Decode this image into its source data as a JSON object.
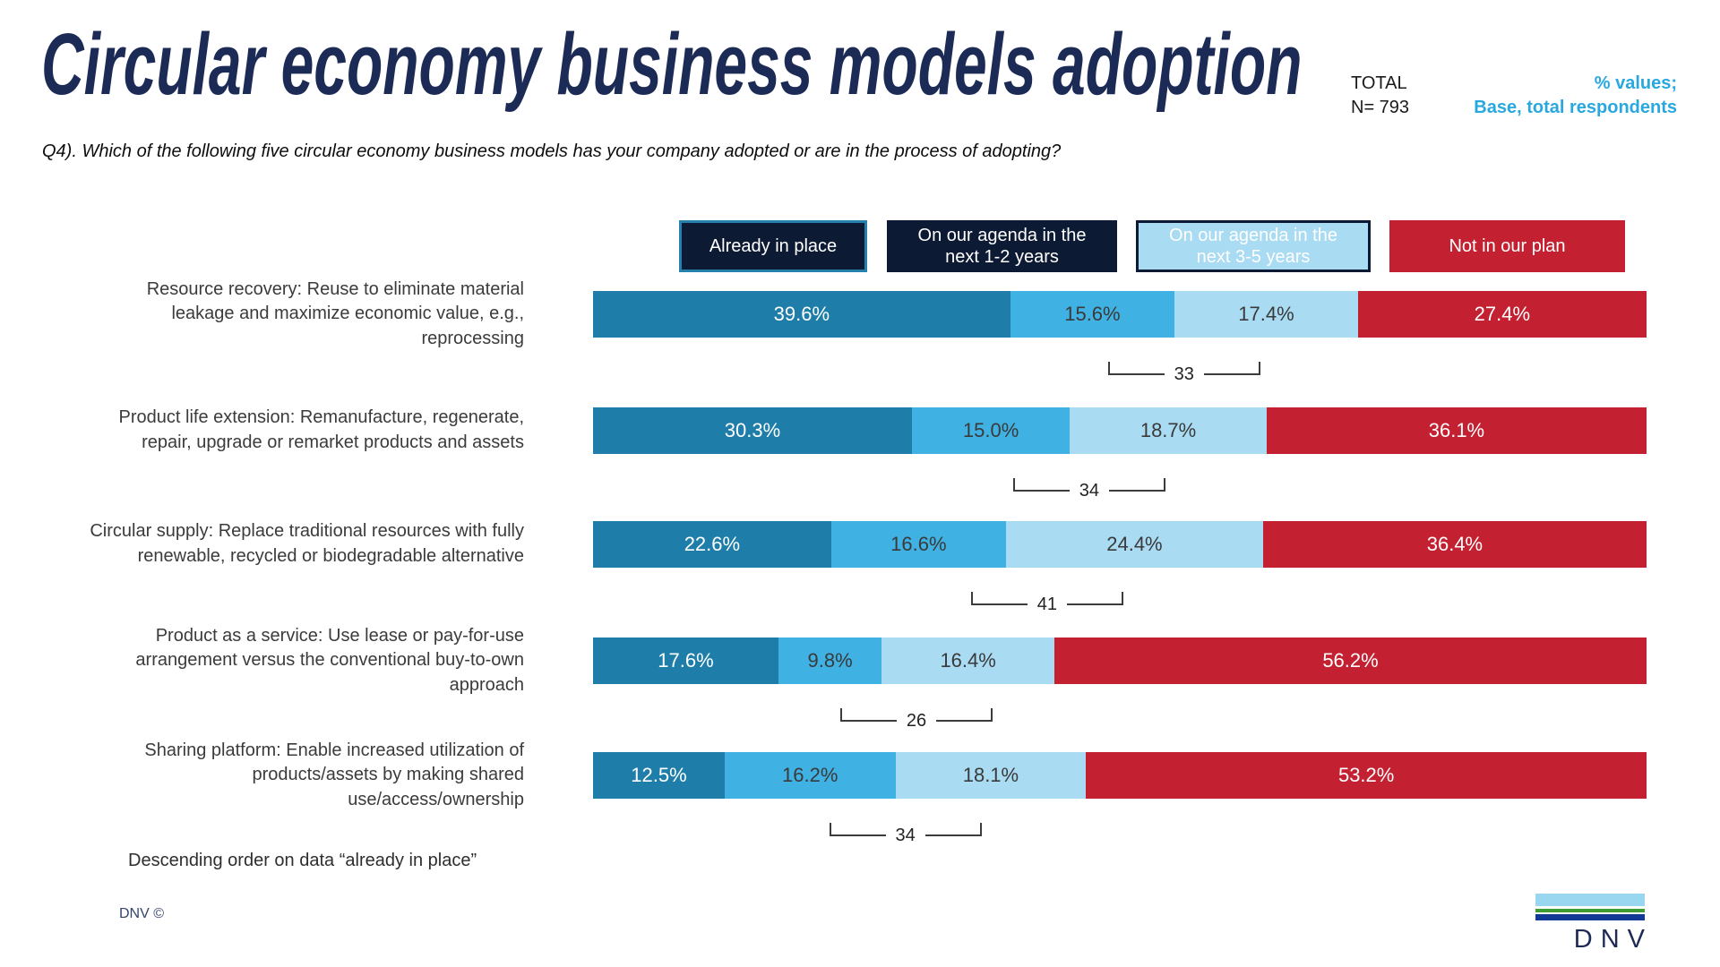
{
  "header": {
    "title": "Circular economy business models adoption",
    "total_label": "TOTAL",
    "total_n": "N= 793",
    "note_line1": "% values;",
    "note_line2": "Base, total respondents",
    "note_color": "#29a8e0"
  },
  "question": "Q4). Which of the following five circular economy business models has your company adopted or are in the process of adopting?",
  "chart_data": {
    "type": "bar",
    "stacked": true,
    "orientation": "horizontal",
    "unit": "%",
    "xlim": [
      0,
      100
    ],
    "title": "Circular economy business models adoption",
    "legend_position": "top",
    "legend": [
      {
        "lines": [
          "Already in place"
        ],
        "color": "#1e7ea9",
        "swatch_bg": "#0d1a33",
        "swatch_border": "#2580ac"
      },
      {
        "lines": [
          "On our agenda in the",
          "next 1-2 years"
        ],
        "color": "#3fb1e3",
        "swatch_bg": "#0d1a33",
        "swatch_border": "#0d1a33"
      },
      {
        "lines": [
          "On our agenda in the",
          "next 3-5 years"
        ],
        "color": "#a9dbf2",
        "swatch_bg": "#a9dbf2",
        "swatch_border": "#0d1a33"
      },
      {
        "lines": [
          "Not in our plan"
        ],
        "color": "#c32031",
        "swatch_bg": "#c32031",
        "swatch_border": "#c32031"
      }
    ],
    "value_label_colors": [
      "#ffffff",
      "#3a3a3a",
      "#3a3a3a",
      "#ffffff"
    ],
    "rows": [
      {
        "category_lines": [
          "Resource recovery: Reuse to eliminate material",
          "leakage and maximize economic value, e.g.,",
          "reprocessing"
        ],
        "values": [
          39.6,
          15.6,
          17.4,
          27.4
        ],
        "value_labels": [
          "39.6%",
          "15.6%",
          "17.4%",
          "27.4%"
        ],
        "agenda_total": "33"
      },
      {
        "category_lines": [
          "Product life extension: Remanufacture, regenerate,",
          "repair, upgrade or remarket products and assets"
        ],
        "values": [
          30.3,
          15.0,
          18.7,
          36.1
        ],
        "value_labels": [
          "30.3%",
          "15.0%",
          "18.7%",
          "36.1%"
        ],
        "agenda_total": "34"
      },
      {
        "category_lines": [
          "Circular supply: Replace traditional resources with fully",
          "renewable, recycled or biodegradable alternative"
        ],
        "values": [
          22.6,
          16.6,
          24.4,
          36.4
        ],
        "value_labels": [
          "22.6%",
          "16.6%",
          "24.4%",
          "36.4%"
        ],
        "agenda_total": "41"
      },
      {
        "category_lines": [
          "Product as a service: Use lease or pay-for-use",
          "arrangement versus the conventional buy-to-own",
          "approach"
        ],
        "values": [
          17.6,
          9.8,
          16.4,
          56.2
        ],
        "value_labels": [
          "17.6%",
          "9.8%",
          "16.4%",
          "56.2%"
        ],
        "agenda_total": "26"
      },
      {
        "category_lines": [
          "Sharing platform: Enable increased utilization of",
          "products/assets by making shared",
          "use/access/ownership"
        ],
        "values": [
          12.5,
          16.2,
          18.1,
          53.2
        ],
        "value_labels": [
          "12.5%",
          "16.2%",
          "18.1%",
          "53.2%"
        ],
        "agenda_total": "34"
      }
    ],
    "footnote": "Descending order on data “already in place”"
  },
  "footer": {
    "copyright": "DNV ©",
    "logo_text": "DNV"
  }
}
